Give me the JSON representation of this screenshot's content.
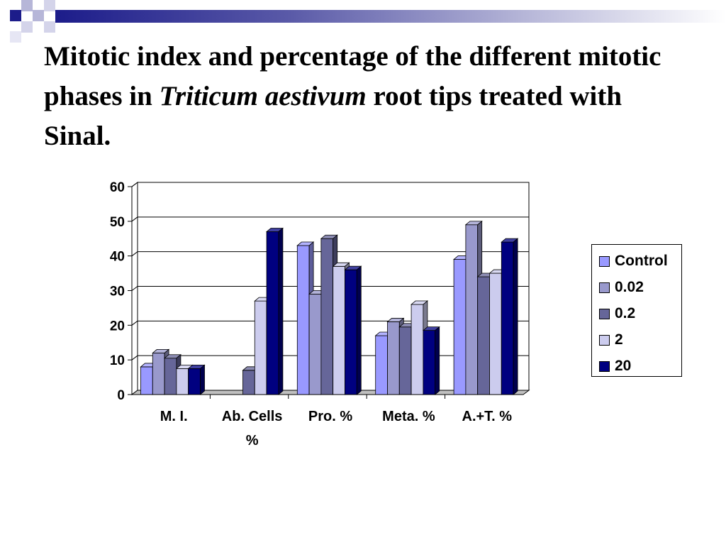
{
  "slide": {
    "title_part1": "Mitotic index and percentage of the different mitotic phases in ",
    "title_italic": "Triticum aestivum",
    "title_part2": " root tips treated with Sinal."
  },
  "colors": {
    "accent_dark": "#1c1c8a",
    "accent_light": "#b6b6d8"
  },
  "chart_data": {
    "type": "bar",
    "categories": [
      "M. I.",
      "Ab. Cells %",
      "Pro. %",
      "Meta. %",
      "A.+T. %"
    ],
    "category_lines": [
      [
        "M. I."
      ],
      [
        "Ab. Cells",
        "%"
      ],
      [
        "Pro. %"
      ],
      [
        "Meta. %"
      ],
      [
        "A.+T. %"
      ]
    ],
    "series": [
      {
        "name": "Control",
        "color": "#9999ff",
        "values": [
          8,
          0,
          43,
          17,
          39
        ]
      },
      {
        "name": "0.02",
        "color": "#9999cc",
        "values": [
          12,
          0,
          29,
          21,
          49
        ]
      },
      {
        "name": "0.2",
        "color": "#666699",
        "values": [
          10.5,
          7,
          45,
          19.5,
          34
        ]
      },
      {
        "name": "2",
        "color": "#ccccee",
        "values": [
          7.5,
          27,
          37,
          26,
          35
        ]
      },
      {
        "name": "20",
        "color": "#000080",
        "values": [
          7.5,
          47,
          36,
          18.5,
          44
        ]
      }
    ],
    "ylim": [
      0,
      60
    ],
    "yticks": [
      0,
      10,
      20,
      30,
      40,
      50,
      60
    ],
    "grid": true,
    "three_d": true,
    "legend_position": "right"
  }
}
